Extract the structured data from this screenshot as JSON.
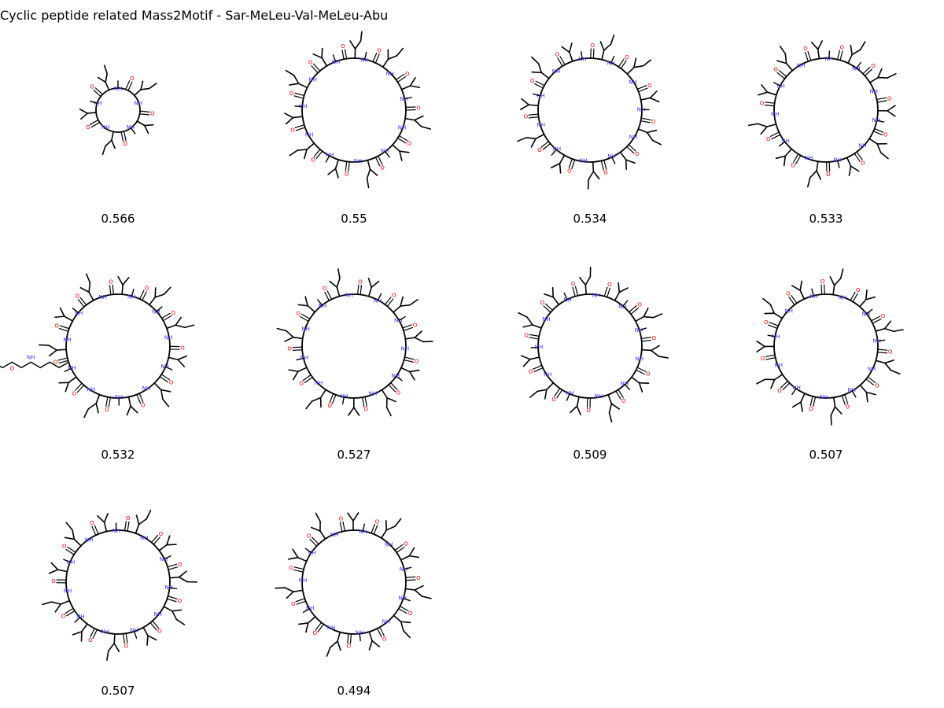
{
  "title": "Cyclic peptide related Mass2Motif - Sar-MeLeu-Val-MeLeu-Abu",
  "colors": {
    "bond": "#000000",
    "nitrogen": "#3333ff",
    "oxygen": "#ff0000"
  },
  "molecules": [
    {
      "score": "0.566",
      "residues": 5,
      "side_extension": false
    },
    {
      "score": "0.55",
      "residues": 11,
      "side_extension": false
    },
    {
      "score": "0.534",
      "residues": 11,
      "side_extension": false
    },
    {
      "score": "0.533",
      "residues": 11,
      "side_extension": false
    },
    {
      "score": "0.532",
      "residues": 11,
      "side_extension": true
    },
    {
      "score": "0.527",
      "residues": 11,
      "side_extension": false
    },
    {
      "score": "0.509",
      "residues": 11,
      "side_extension": false
    },
    {
      "score": "0.507",
      "residues": 11,
      "side_extension": false
    },
    {
      "score": "0.507",
      "residues": 11,
      "side_extension": false
    },
    {
      "score": "0.494",
      "residues": 11,
      "side_extension": false
    }
  ]
}
